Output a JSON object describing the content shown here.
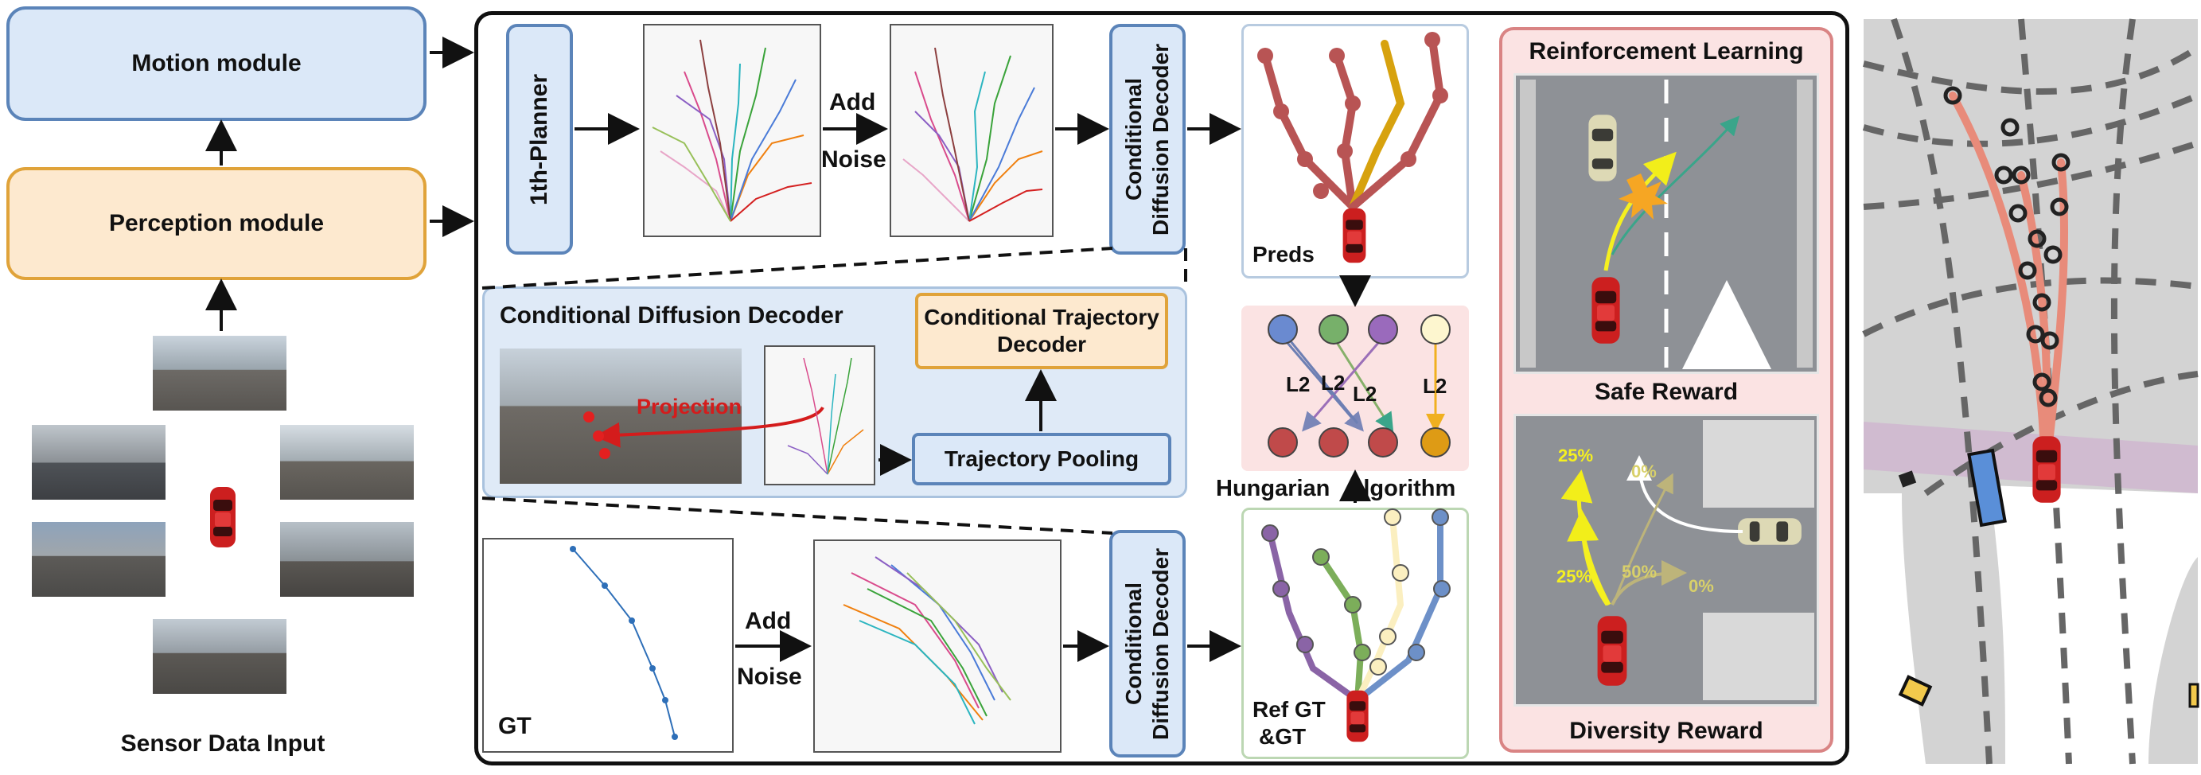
{
  "modules": {
    "motion": "Motion module",
    "perception": "Perception module",
    "sensor_input": "Sensor Data Input"
  },
  "planner": {
    "first_planner": "1th-Planner",
    "add": "Add",
    "noise": "Noise",
    "cdd_top": "Conditional Diffusion Decoder",
    "cdd_bottom": "Conditional Diffusion Decoder",
    "preds": "Preds",
    "gt": "GT",
    "ref_gt_1": "Ref GT",
    "ref_gt_2": "&GT",
    "hungarian": "Hungarian Algorithm"
  },
  "decoder_detail": {
    "title": "Conditional Diffusion Decoder",
    "projection": "Projection",
    "ctd": "Conditional Trajectory Decoder",
    "pooling": "Trajectory Pooling"
  },
  "matching": {
    "l2_labels": [
      "L2",
      "L2",
      "L2",
      "L2"
    ]
  },
  "rl": {
    "title": "Reinforcement Learning",
    "safe_reward": "Safe Reward",
    "diversity_reward": "Diversity Reward",
    "percents": [
      "25%",
      "0%",
      "25%",
      "50%",
      "0%"
    ]
  },
  "colors": {
    "blue_fill": "#dbe8f8",
    "blue_border": "#5b84b9",
    "orange_fill": "#fde9cf",
    "orange_border": "#e0a33a",
    "rl_fill": "#fbe3e3",
    "rl_border": "#d98484",
    "car_red": "#cc1f1f"
  }
}
